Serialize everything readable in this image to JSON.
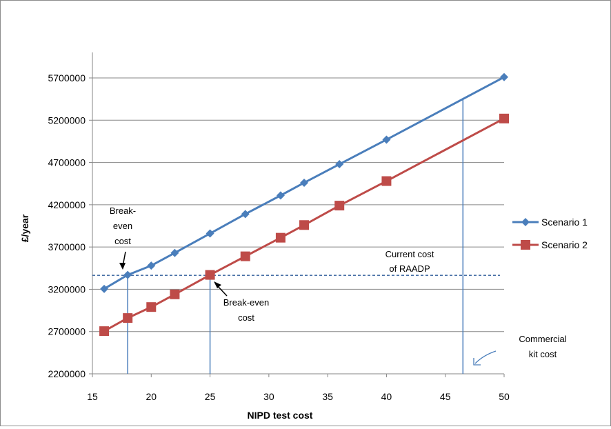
{
  "chart_data": {
    "type": "line",
    "title": "",
    "xlabel": "NIPD test cost",
    "ylabel": "£/year",
    "xlim": [
      15,
      50
    ],
    "ylim": [
      2200000,
      5700000
    ],
    "x_ticks": [
      15,
      20,
      25,
      30,
      35,
      40,
      45,
      50
    ],
    "y_ticks": [
      2200000,
      2700000,
      3200000,
      3700000,
      4200000,
      4700000,
      5200000,
      5700000
    ],
    "grid": "horizontal",
    "legend_position": "right",
    "series": [
      {
        "name": "Scenario 1",
        "color": "#4a7ebb",
        "marker": "diamond",
        "x": [
          16,
          18,
          20,
          22,
          25,
          28,
          31,
          33,
          36,
          40,
          50
        ],
        "y": [
          3205000,
          3370000,
          3480000,
          3630000,
          3860000,
          4090000,
          4310000,
          4460000,
          4680000,
          4970000,
          5710000
        ]
      },
      {
        "name": "Scenario 2",
        "color": "#be4b48",
        "marker": "square",
        "x": [
          16,
          18,
          20,
          22,
          25,
          28,
          31,
          33,
          36,
          40,
          50
        ],
        "y": [
          2705000,
          2860000,
          2990000,
          3140000,
          3370000,
          3590000,
          3810000,
          3960000,
          4190000,
          4480000,
          5220000
        ]
      }
    ],
    "reference_lines": {
      "current_cost_y": 3365000,
      "vertical_x": [
        18,
        25,
        46.5
      ]
    },
    "annotations": {
      "break_even_left": [
        "Break-",
        "even",
        "cost"
      ],
      "break_even_right": [
        "Break-even",
        "cost"
      ],
      "current_cost": [
        "Current cost",
        "of RAADP"
      ],
      "commercial_kit": [
        "Commercial",
        "kit cost"
      ]
    },
    "colors": {
      "grid": "#868686",
      "reference_line": "#4a7ebb",
      "current_cost_line": "#2e5c9a",
      "arrow": "#4a7ebb"
    }
  }
}
